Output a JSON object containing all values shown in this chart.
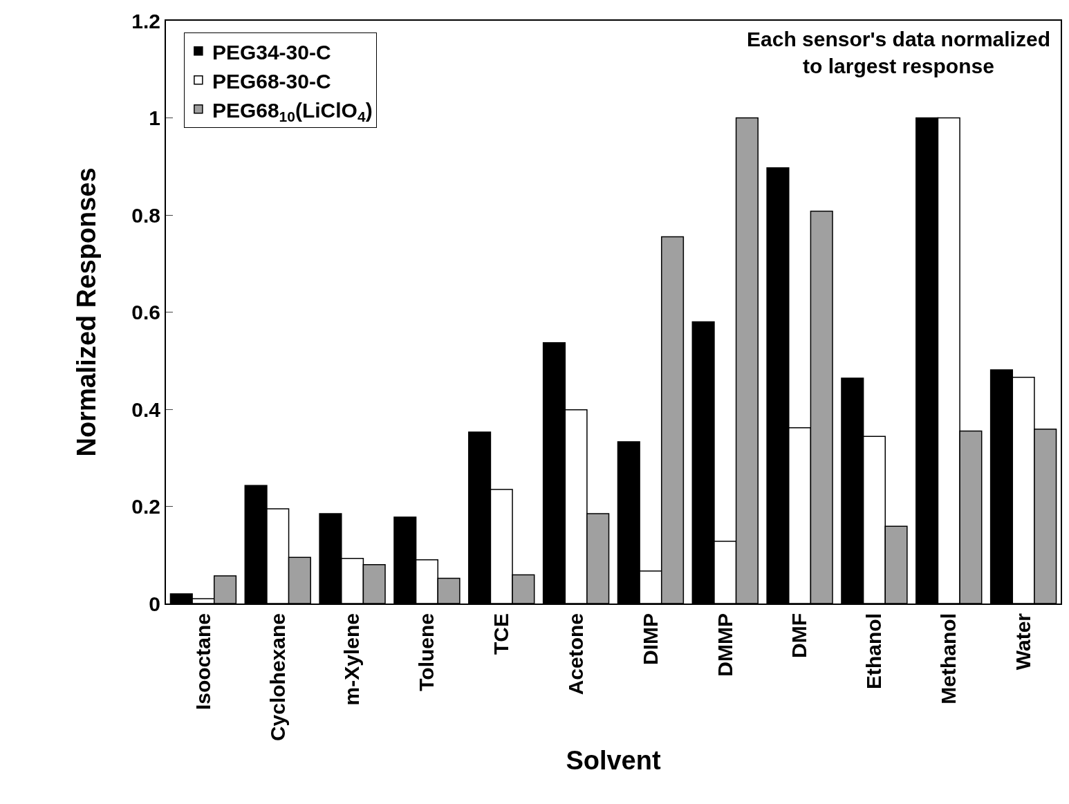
{
  "chart_data": {
    "type": "bar",
    "xlabel": "Solvent",
    "ylabel": "Normalized Responses",
    "categories": [
      "Isooctane",
      "Cyclohexane",
      "m-Xylene",
      "Toluene",
      "TCE",
      "Acetone",
      "DIMP",
      "DMMP",
      "DMF",
      "Ethanol",
      "Methanol",
      "Water"
    ],
    "series": [
      {
        "name": "PEG34-30-C",
        "color": "#000000",
        "values": [
          0.02,
          0.243,
          0.185,
          0.178,
          0.353,
          0.537,
          0.333,
          0.58,
          0.897,
          0.464,
          1.0,
          0.481
        ]
      },
      {
        "name": "PEG68-30-C",
        "color": "#ffffff",
        "values": [
          0.01,
          0.195,
          0.093,
          0.09,
          0.235,
          0.399,
          0.067,
          0.128,
          0.362,
          0.344,
          1.0,
          0.466
        ]
      },
      {
        "name": "PEG68$_{10}$(LiClO$_{4}$)",
        "color": "#a0a0a0",
        "values": [
          0.057,
          0.095,
          0.08,
          0.052,
          0.059,
          0.185,
          0.755,
          1.0,
          0.808,
          0.159,
          0.355,
          0.359
        ]
      }
    ],
    "ylim": [
      0,
      1.2
    ],
    "yticks": [
      0,
      0.2,
      0.4,
      0.6,
      0.8,
      1,
      1.2
    ],
    "annotations": [
      "Each sensor's data normalized\nto largest response"
    ],
    "legend": "top left"
  }
}
